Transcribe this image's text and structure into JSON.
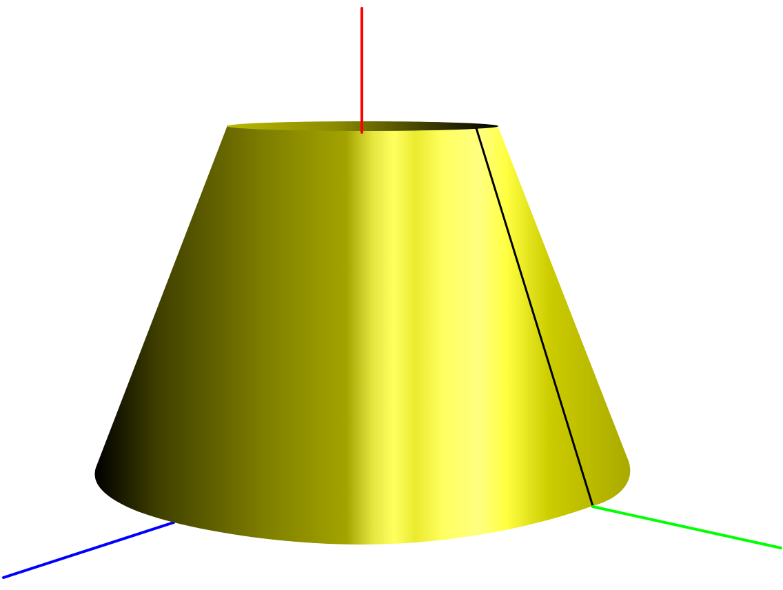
{
  "scene": {
    "object": "truncated-cone",
    "colors": {
      "background": "#ffffff",
      "surface_highlight": "#ffff80",
      "surface_base": "#cccc00",
      "surface_shadow": "#000000",
      "seam_line": "#000000",
      "axis_vertical": "#ff0000",
      "axis_right": "#00ff00",
      "axis_left": "#0000ff"
    }
  }
}
